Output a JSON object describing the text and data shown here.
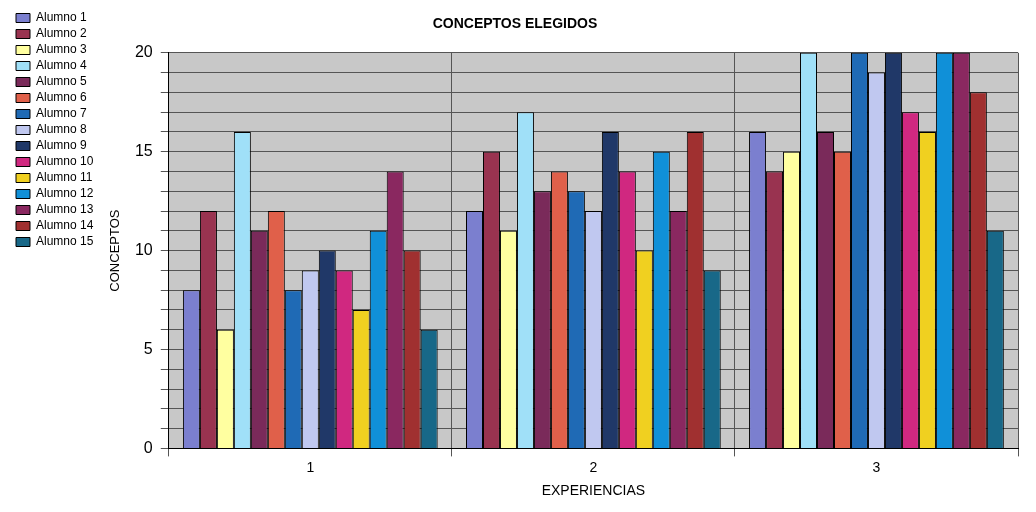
{
  "chart_data": {
    "type": "bar",
    "title": "CONCEPTOS ELEGIDOS",
    "xlabel": "EXPERIENCIAS",
    "ylabel": "CONCEPTOS",
    "categories": [
      "1",
      "2",
      "3"
    ],
    "series": [
      {
        "name": "Alumno 1",
        "color": "#7b7fcf",
        "values": [
          8,
          12,
          16
        ]
      },
      {
        "name": "Alumno 2",
        "color": "#993350",
        "values": [
          12,
          15,
          14
        ]
      },
      {
        "name": "Alumno 3",
        "color": "#ffffa0",
        "values": [
          6,
          11,
          15
        ]
      },
      {
        "name": "Alumno 4",
        "color": "#a0e0f8",
        "values": [
          16,
          17,
          20
        ]
      },
      {
        "name": "Alumno 5",
        "color": "#7a2a5a",
        "values": [
          11,
          13,
          16
        ]
      },
      {
        "name": "Alumno 6",
        "color": "#e0604a",
        "values": [
          12,
          14,
          15
        ]
      },
      {
        "name": "Alumno 7",
        "color": "#1f6ab5",
        "values": [
          8,
          13,
          20
        ]
      },
      {
        "name": "Alumno 8",
        "color": "#c0c8f0",
        "values": [
          9,
          12,
          19
        ]
      },
      {
        "name": "Alumno 9",
        "color": "#203868",
        "values": [
          10,
          16,
          20
        ]
      },
      {
        "name": "Alumno 10",
        "color": "#d02880",
        "values": [
          9,
          14,
          17
        ]
      },
      {
        "name": "Alumno 11",
        "color": "#f0d020",
        "values": [
          7,
          10,
          16
        ]
      },
      {
        "name": "Alumno 12",
        "color": "#1090d8",
        "values": [
          11,
          15,
          20
        ]
      },
      {
        "name": "Alumno 13",
        "color": "#8a2860",
        "values": [
          14,
          12,
          20
        ]
      },
      {
        "name": "Alumno 14",
        "color": "#a03030",
        "values": [
          10,
          16,
          18
        ]
      },
      {
        "name": "Alumno 15",
        "color": "#186888",
        "values": [
          6,
          9,
          11
        ]
      }
    ],
    "ylim": [
      0,
      20
    ],
    "yticks": [
      0,
      {
        "value": 1,
        "label": null
      },
      {
        "value": 2,
        "label": null
      },
      {
        "value": 3,
        "label": null
      },
      {
        "value": 4,
        "label": null
      },
      5,
      {
        "value": 6,
        "label": null
      },
      {
        "value": 7,
        "label": null
      },
      {
        "value": 8,
        "label": null
      },
      {
        "value": 9,
        "label": null
      },
      10,
      {
        "value": 11,
        "label": null
      },
      {
        "value": 12,
        "label": null
      },
      {
        "value": 13,
        "label": null
      },
      {
        "value": 14,
        "label": null
      },
      15,
      {
        "value": 16,
        "label": null
      },
      {
        "value": 17,
        "label": null
      },
      {
        "value": 18,
        "label": null
      },
      {
        "value": 19,
        "label": null
      },
      20
    ],
    "grid": true,
    "legend": "left"
  }
}
